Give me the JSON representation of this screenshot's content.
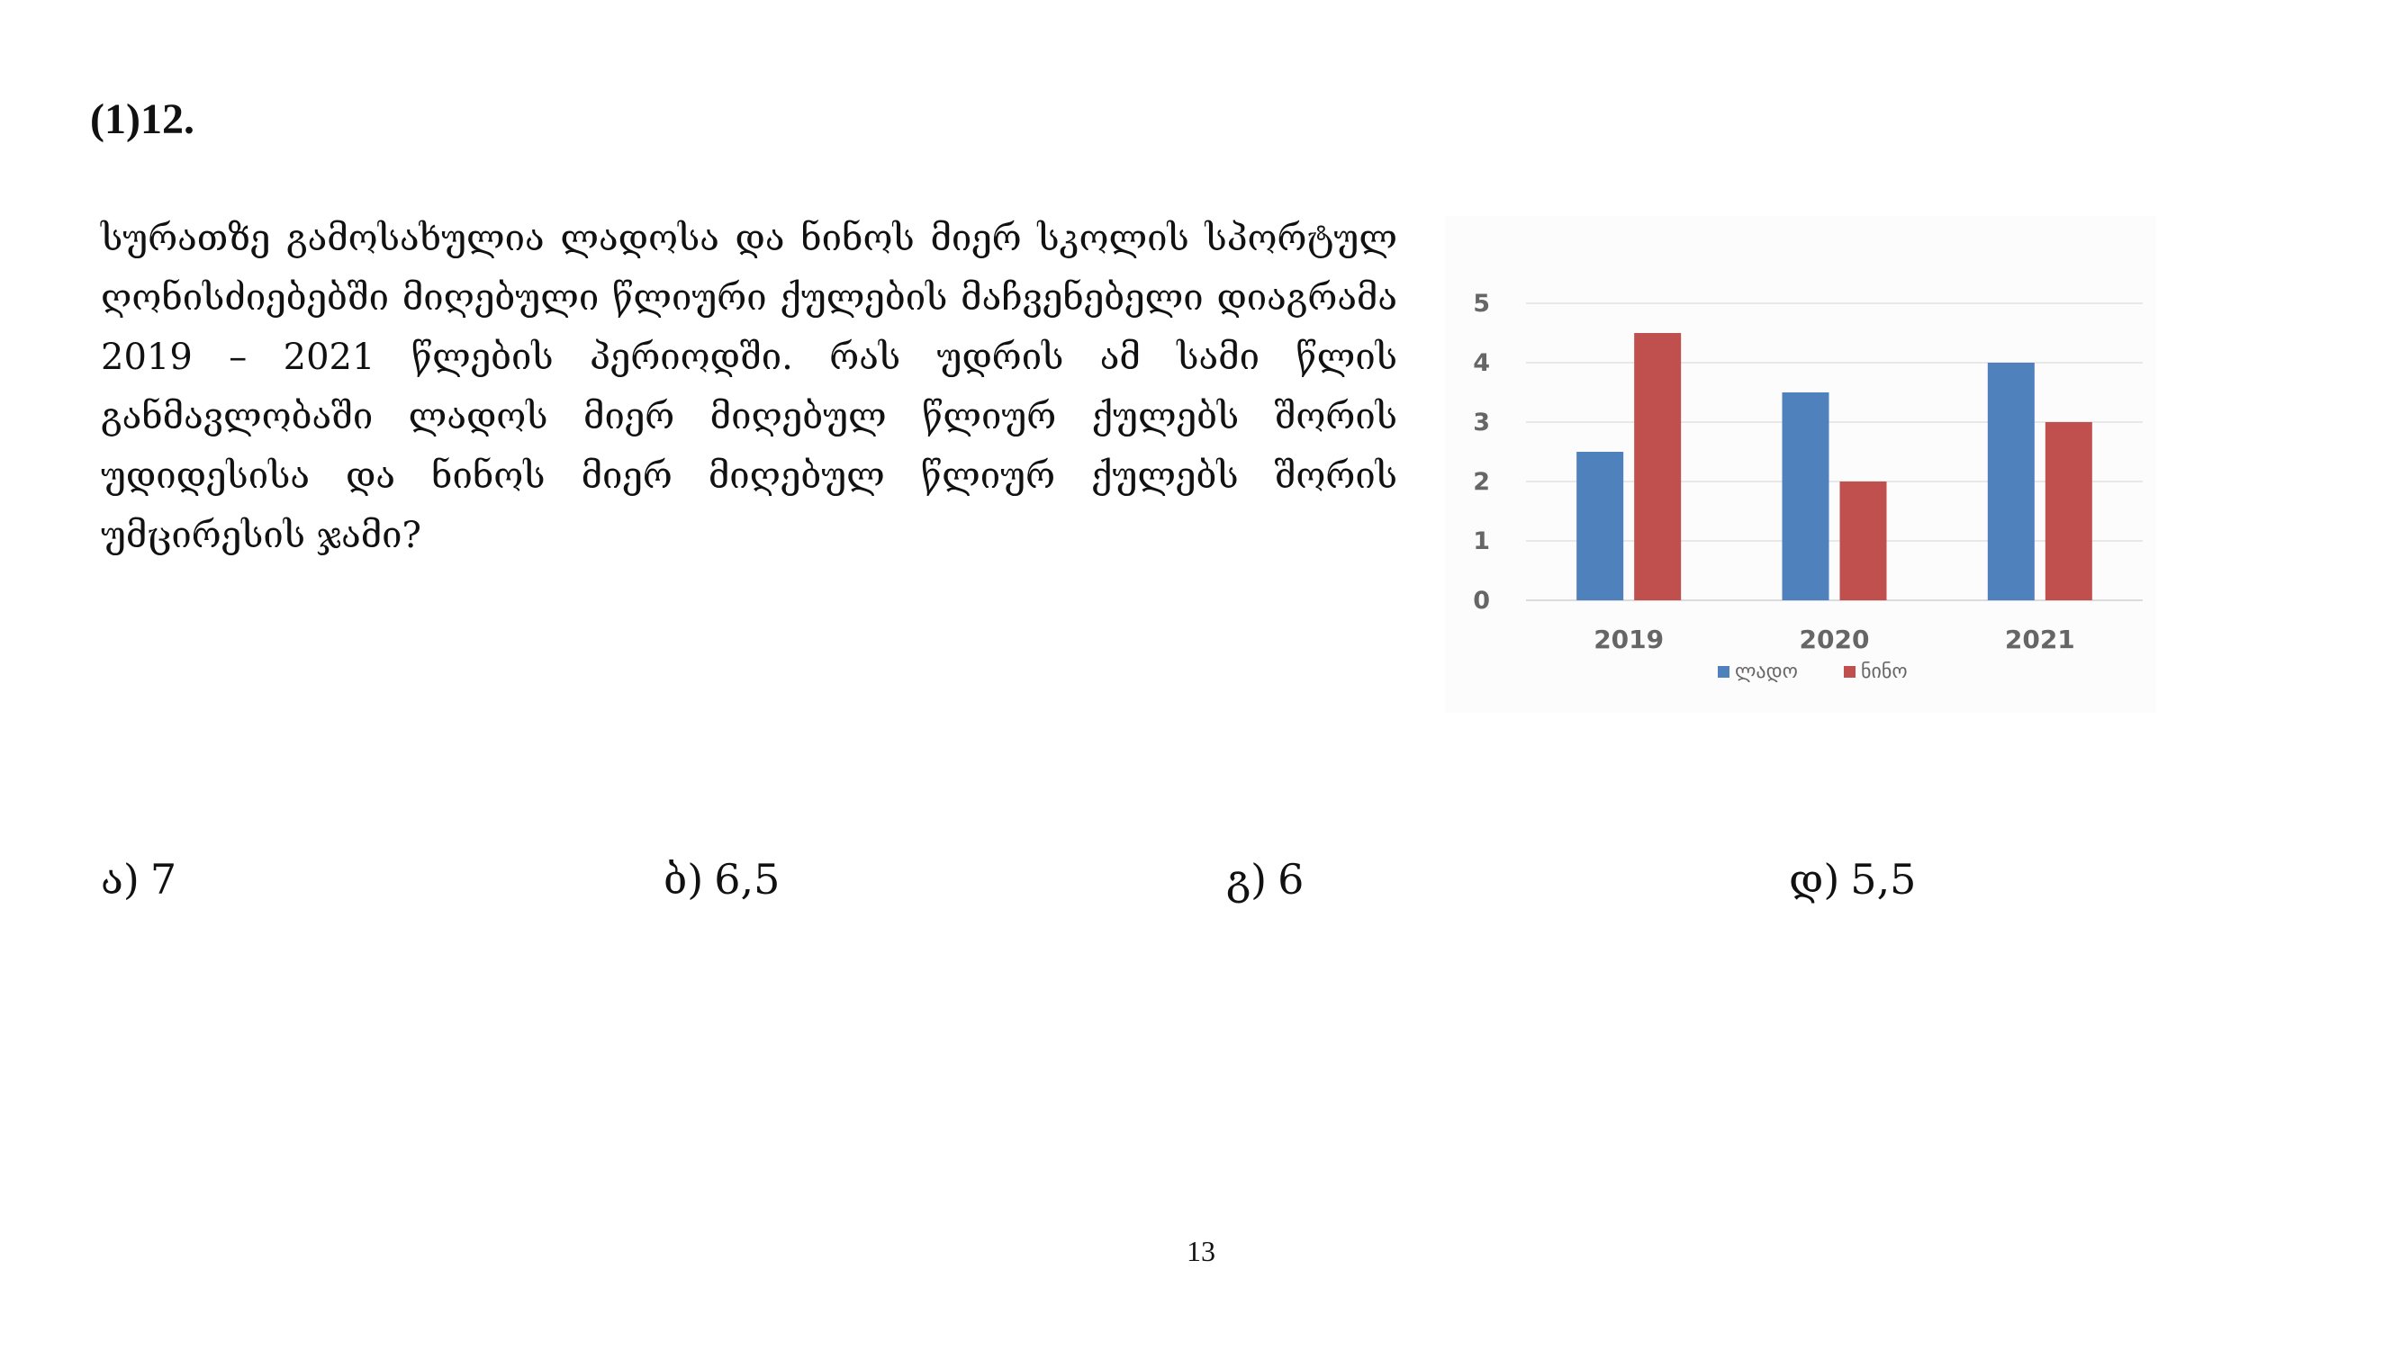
{
  "problem": {
    "number": "(1)12.",
    "question": "სურათზე გამოსახულია ლადოსა და ნინოს მიერ სკოლის სპორტულ ღონისძიებებში მიღებული წლიური ქულების მაჩვენებელი დიაგრამა 2019 – 2021 წლების პერიოდში. რას უდრის ამ სამი წლის განმავლობაში ლადოს მიერ მიღებულ წლიურ ქულებს შორის უდიდესისა  და ნინოს მიერ მიღებულ წლიურ ქულებს შორის უმცირესის ჯამი?"
  },
  "answers": [
    {
      "letter": "ა)",
      "value": "7"
    },
    {
      "letter": "ბ)",
      "value": "6,5"
    },
    {
      "letter": "გ)",
      "value": "6"
    },
    {
      "letter": "დ)",
      "value": "5,5"
    }
  ],
  "page_number": "13",
  "chart_data": {
    "type": "bar",
    "categories": [
      "2019",
      "2020",
      "2021"
    ],
    "series": [
      {
        "name": "ლადო",
        "values": [
          2.5,
          3.5,
          4
        ],
        "color": "#4f81bd"
      },
      {
        "name": "ნინო",
        "values": [
          4.5,
          2,
          3
        ],
        "color": "#c0504d"
      }
    ],
    "ylim": [
      0,
      5
    ],
    "yticks": [
      "0",
      "1",
      "2",
      "3",
      "4",
      "5"
    ],
    "grid": true,
    "legend": "bottom"
  }
}
